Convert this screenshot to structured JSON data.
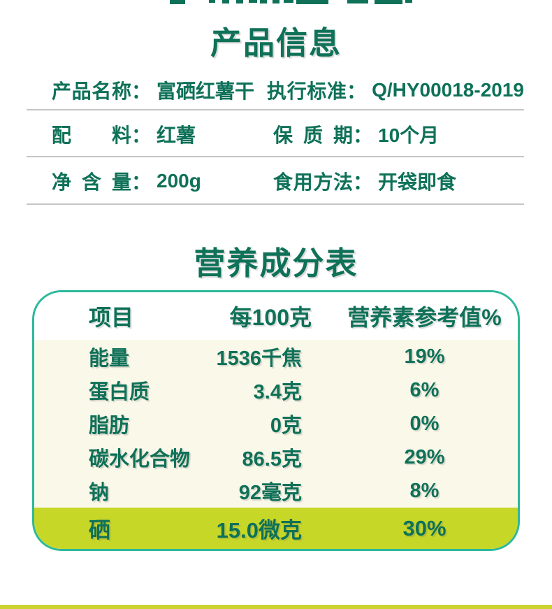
{
  "page": {
    "section1_title": "产品信息",
    "section2_title": "营养成分表"
  },
  "product_info": {
    "colon": "：",
    "rows": [
      {
        "left_label": "产品名称",
        "left_value": "富硒红薯干",
        "right_label": "执行标准",
        "right_value": "Q/HY00018-2019"
      },
      {
        "left_label": "配料",
        "left_value": "红薯",
        "right_label": "保质期",
        "right_value": "10个月"
      },
      {
        "left_label": "净含量",
        "left_value": "200g",
        "right_label": "食用方法",
        "right_value": "开袋即食"
      }
    ]
  },
  "nutrition": {
    "headers": [
      "项目",
      "每100克",
      "营养素参考值%"
    ],
    "rows": [
      {
        "item": "能量",
        "amount": "1536千焦",
        "nrv": "19%"
      },
      {
        "item": "蛋白质",
        "amount": "3.4克",
        "nrv": "6%"
      },
      {
        "item": "脂肪",
        "amount": "0克",
        "nrv": "0%"
      },
      {
        "item": "碳水化合物",
        "amount": "86.5克",
        "nrv": "29%"
      },
      {
        "item": "钠",
        "amount": "92毫克",
        "nrv": "8%"
      }
    ],
    "highlight_row": {
      "item": "硒",
      "amount": "15.0微克",
      "nrv": "30%"
    }
  },
  "colors": {
    "text_green": "#0e7158",
    "border_teal": "#2cb89c",
    "cream_background": "#faf8e9",
    "highlight_yellow": "#c7d728",
    "divider_gray": "#c6c6c6",
    "bottom_strip_yellow": "#ccd32e"
  }
}
